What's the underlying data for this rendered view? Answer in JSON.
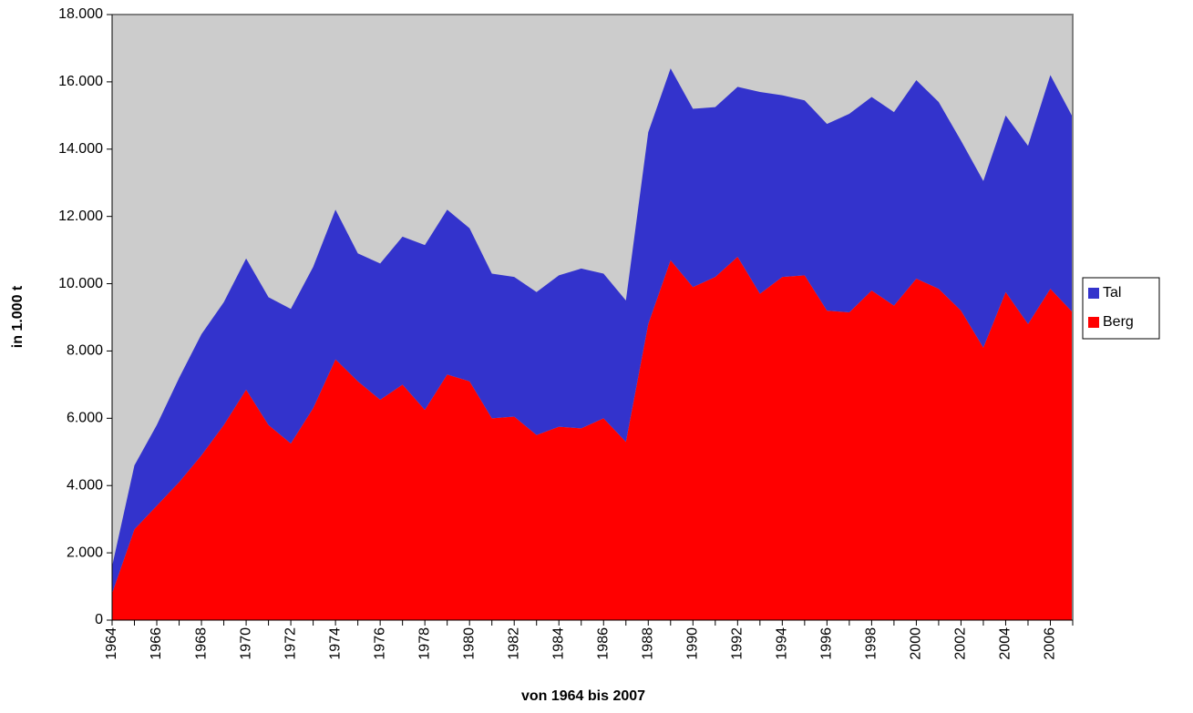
{
  "chart_data": {
    "type": "stacked-area",
    "x_label": "von 1964 bis 2007",
    "y_label": "in 1.000 t",
    "categories": [
      "1964",
      null,
      "1966",
      null,
      "1968",
      null,
      "1970",
      null,
      "1972",
      null,
      "1974",
      null,
      "1976",
      null,
      "1978",
      null,
      "1980",
      null,
      "1982",
      null,
      "1984",
      null,
      "1986",
      null,
      "1988",
      null,
      "1990",
      null,
      "1992",
      null,
      "1994",
      null,
      "1996",
      null,
      "1998",
      null,
      "2000",
      null,
      "2002",
      null,
      "2004",
      null,
      "2006",
      null
    ],
    "series": [
      {
        "name": "Berg",
        "color": "#ff0000",
        "values": [
          800,
          2700,
          3400,
          4100,
          4900,
          5800,
          6850,
          5800,
          5250,
          6300,
          7750,
          7100,
          6550,
          7000,
          6250,
          7300,
          7100,
          6000,
          6050,
          5500,
          5750,
          5700,
          6000,
          5300,
          8800,
          10700,
          9900,
          10200,
          10800,
          9700,
          10200,
          10250,
          9200,
          9150,
          9800,
          9350,
          10150,
          9850,
          9200,
          8100,
          9750,
          8800,
          9850,
          9150
        ]
      },
      {
        "name": "Tal",
        "color": "#3333cc",
        "values": [
          800,
          1900,
          2400,
          3100,
          3600,
          3650,
          3900,
          3800,
          4000,
          4200,
          4450,
          3800,
          4050,
          4400,
          4900,
          4900,
          4550,
          4300,
          4150,
          4250,
          4500,
          4750,
          4300,
          4200,
          5700,
          5700,
          5300,
          5050,
          5050,
          6000,
          5400,
          5200,
          5550,
          5900,
          5750,
          5750,
          5900,
          5550,
          5050,
          4950,
          5250,
          5300,
          6350,
          5800
        ]
      }
    ],
    "ylim": [
      0,
      18000
    ],
    "yticks": [
      0,
      {
        "value": 2000,
        "label": "2.000"
      },
      {
        "value": 4000,
        "label": "4.000"
      },
      {
        "value": 6000,
        "label": "6.000"
      },
      {
        "value": 8000,
        "label": "8.000"
      },
      {
        "value": 10000,
        "label": "10.000"
      },
      {
        "value": 12000,
        "label": "12.000"
      },
      {
        "value": 14000,
        "label": "14.000"
      },
      {
        "value": 16000,
        "label": "16.000"
      },
      {
        "value": 18000,
        "label": "18.000"
      }
    ],
    "plot_background": "#cccccc",
    "legend": "right"
  }
}
